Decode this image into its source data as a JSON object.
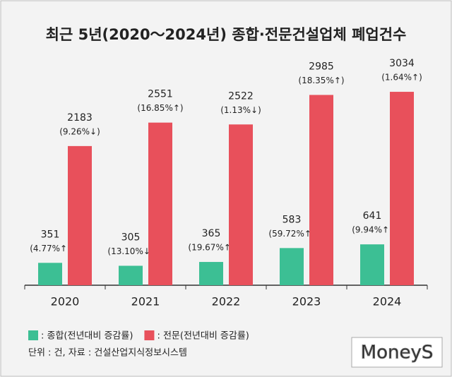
{
  "chart_data": {
    "type": "bar",
    "title": "최근 5년(2020～2024년) 종합·전문건설업체 폐업건수",
    "categories": [
      "2020",
      "2021",
      "2022",
      "2023",
      "2024"
    ],
    "series": [
      {
        "name": ": 종합(전년대비 증감률)",
        "color": "#3cbf94",
        "values": [
          351,
          305,
          365,
          583,
          641
        ],
        "changes": [
          "(4.77%↑)",
          "(13.10%↓)",
          "(19.67%↑)",
          "(59.72%↑)",
          "(9.94%↑)"
        ]
      },
      {
        "name": ": 전문(전년대비 증감률)",
        "color": "#e8505b",
        "values": [
          2183,
          2551,
          2522,
          2985,
          3034
        ],
        "changes": [
          "(9.26%↓)",
          "(16.85%↑)",
          "(1.13%↓)",
          "(18.35%↑)",
          "(1.64%↑)"
        ]
      }
    ],
    "ylim": [
      0,
      3400
    ],
    "note": "단위 : 건, 자료 : 건설산업지식정보시스템",
    "logo": "MoneyS"
  }
}
